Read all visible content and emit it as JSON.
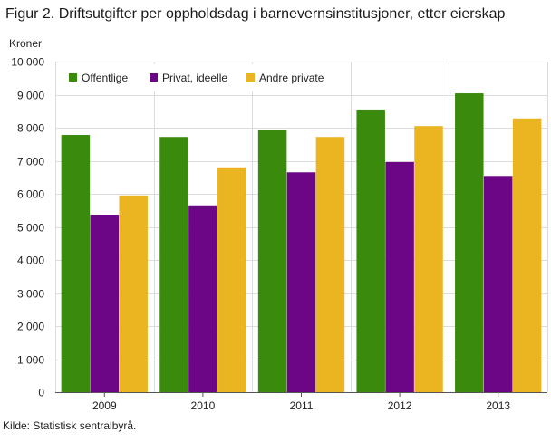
{
  "chart_data": {
    "type": "bar",
    "title": "Figur 2. Driftsutgifter per oppholdsdag i barnevernsinstitusjoner, etter eierskap",
    "ylabel": "Kroner",
    "xlabel": "",
    "categories": [
      "2009",
      "2010",
      "2011",
      "2012",
      "2013"
    ],
    "series": [
      {
        "name": "Offentlige",
        "color": "#3a8a0c",
        "values": [
          7780,
          7720,
          7920,
          8550,
          9040
        ]
      },
      {
        "name": "Privat, ideelle",
        "color": "#6c0586",
        "values": [
          5370,
          5650,
          6650,
          6960,
          6540
        ]
      },
      {
        "name": "Andre private",
        "color": "#eab521",
        "values": [
          5950,
          6800,
          7720,
          8050,
          8280
        ]
      }
    ],
    "ylim": [
      0,
      10000
    ],
    "yticks": [
      0,
      1000,
      2000,
      3000,
      4000,
      5000,
      6000,
      7000,
      8000,
      9000,
      10000
    ],
    "ytick_labels": [
      "0",
      "1 000",
      "2 000",
      "3 000",
      "4 000",
      "5 000",
      "6 000",
      "7 000",
      "8 000",
      "9 000",
      "10 000"
    ],
    "grid": true,
    "legend_position": "top-left"
  },
  "source": "Kilde: Statistisk sentralbyrå."
}
